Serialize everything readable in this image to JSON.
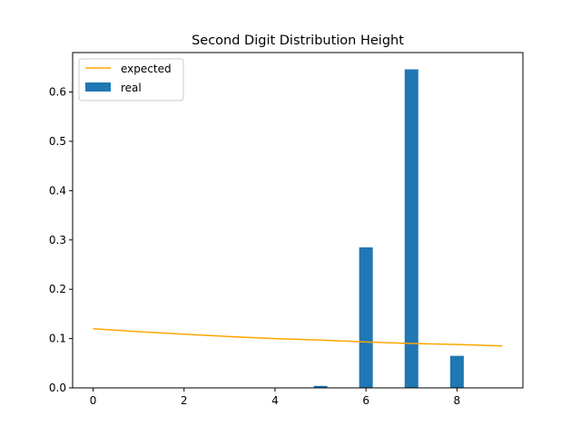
{
  "chart_data": {
    "type": "bar",
    "title": "Second Digit Distribution Height",
    "xlabel": "",
    "ylabel": "",
    "xlim": [
      -0.45,
      9.45
    ],
    "ylim": [
      0,
      0.68
    ],
    "xticks": [
      0,
      2,
      4,
      6,
      8
    ],
    "yticks": [
      0.0,
      0.1,
      0.2,
      0.3,
      0.4,
      0.5,
      0.6
    ],
    "grid": false,
    "legend_position": "upper-left",
    "bar_width": 0.3,
    "series": [
      {
        "name": "expected",
        "type": "line",
        "color": "#ffa500",
        "x": [
          0,
          1,
          2,
          3,
          4,
          5,
          6,
          7,
          8,
          9
        ],
        "values": [
          0.12,
          0.114,
          0.109,
          0.104,
          0.1,
          0.097,
          0.093,
          0.09,
          0.088,
          0.085
        ]
      },
      {
        "name": "real",
        "type": "bar",
        "color": "#1f77b4",
        "x": [
          0,
          1,
          2,
          3,
          4,
          5,
          6,
          7,
          8,
          9
        ],
        "values": [
          0,
          0,
          0,
          0,
          0,
          0.004,
          0.285,
          0.646,
          0.065,
          0
        ]
      }
    ]
  }
}
